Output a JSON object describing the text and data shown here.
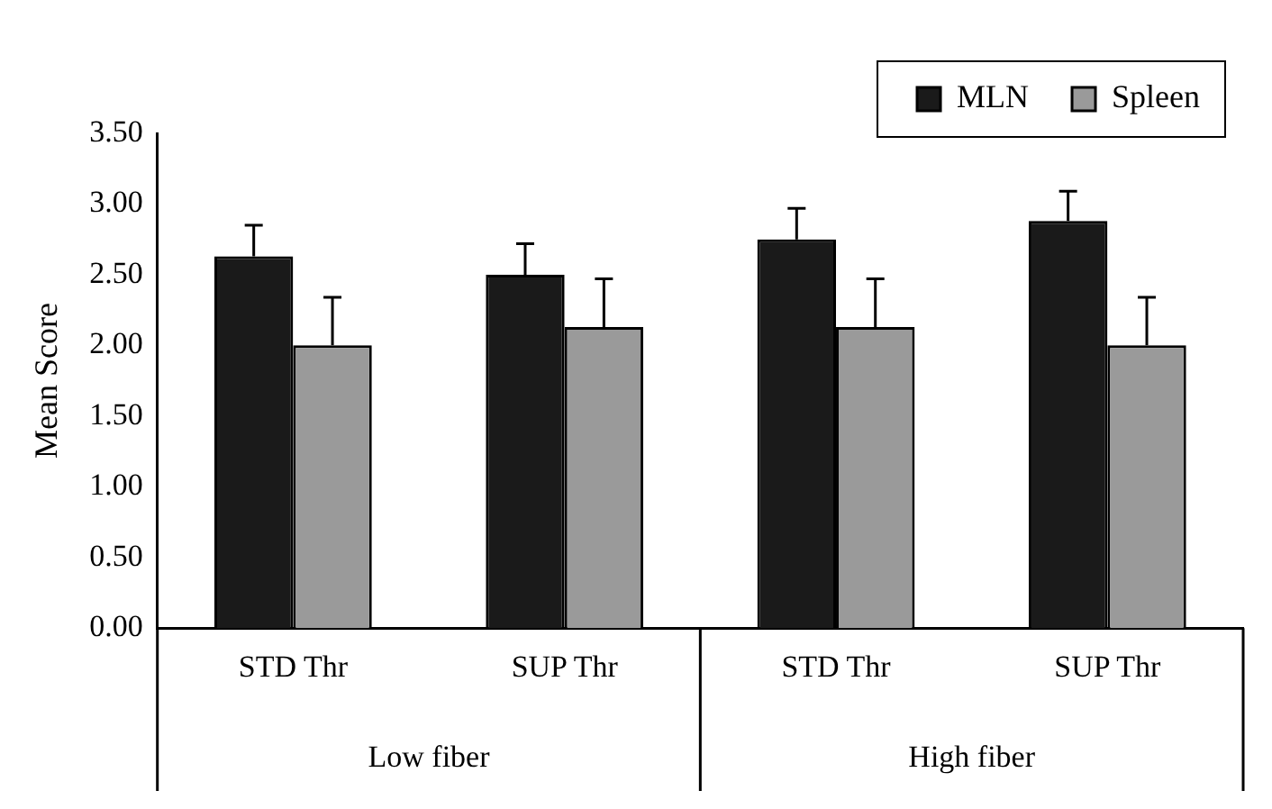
{
  "chart_data": {
    "type": "bar",
    "ylabel": "Mean Score",
    "categories": [
      "STD Thr",
      "SUP Thr",
      "STD Thr",
      "SUP Thr"
    ],
    "annotations": [
      "Low fiber",
      "High fiber"
    ],
    "series": [
      {
        "name": "MLN",
        "color": "#1a1a1a",
        "values": [
          2.63,
          2.5,
          2.75,
          2.88
        ],
        "errors": [
          [
            2.63,
            2.85
          ],
          [
            2.5,
            2.72
          ],
          [
            2.75,
            2.97
          ],
          [
            2.88,
            3.09
          ]
        ]
      },
      {
        "name": "Spleen",
        "color": "#9a9a9a",
        "values": [
          2.0,
          2.13,
          2.13,
          2.0
        ],
        "errors": [
          [
            2.0,
            2.34
          ],
          [
            2.13,
            2.47
          ],
          [
            2.13,
            2.47
          ],
          [
            2.0,
            2.34
          ]
        ]
      }
    ],
    "ylim": [
      0,
      3.5
    ],
    "yticks": [
      {
        "value": 0,
        "label": "0.00"
      },
      {
        "value": 0.5,
        "label": "0.50"
      },
      {
        "value": 1,
        "label": "1.00"
      },
      {
        "value": 1.5,
        "label": "1.50"
      },
      {
        "value": 2,
        "label": "2.00"
      },
      {
        "value": 2.5,
        "label": "2.50"
      },
      {
        "value": 3,
        "label": "3.00"
      },
      {
        "value": 3.5,
        "label": "3.50"
      }
    ],
    "grid": false,
    "legend": "top right"
  }
}
